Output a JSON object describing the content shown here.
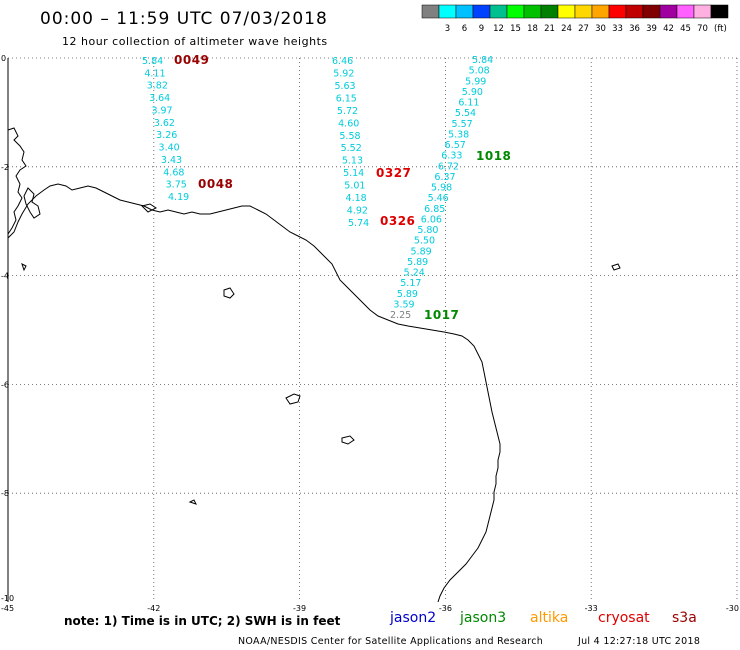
{
  "header": {
    "title": "00:00 – 11:59 UTC 07/03/2018",
    "subtitle": "12 hour collection of altimeter wave heights"
  },
  "legend": {
    "bins": [
      {
        "color": "#808080",
        "label": ""
      },
      {
        "color": "#00ffff",
        "label": "3"
      },
      {
        "color": "#00c0ff",
        "label": "6"
      },
      {
        "color": "#0040ff",
        "label": "9"
      },
      {
        "color": "#00c090",
        "label": "12"
      },
      {
        "color": "#00ff00",
        "label": "15"
      },
      {
        "color": "#00c000",
        "label": "18"
      },
      {
        "color": "#008000",
        "label": "21"
      },
      {
        "color": "#ffff00",
        "label": "24"
      },
      {
        "color": "#ffd700",
        "label": "27"
      },
      {
        "color": "#ffa500",
        "label": "30"
      },
      {
        "color": "#ff0000",
        "label": "33"
      },
      {
        "color": "#c00000",
        "label": "36"
      },
      {
        "color": "#800000",
        "label": "39"
      },
      {
        "color": "#a000a0",
        "label": "42"
      },
      {
        "color": "#ff60ff",
        "label": "45"
      },
      {
        "color": "#ffb0e0",
        "label": "70"
      },
      {
        "color": "#000000",
        "label": ""
      }
    ],
    "unit": "(ft)"
  },
  "axes": {
    "lon_ticks": [
      "-45",
      "-42",
      "-39",
      "-36",
      "-33",
      "-30"
    ],
    "lat_ticks": [
      "0",
      "-2",
      "-4",
      "-6",
      "-8",
      "-10"
    ],
    "lon_range": [
      -45,
      -30
    ],
    "lat_range": [
      0,
      -10
    ]
  },
  "colors": {
    "obs": "#00ccdd",
    "obs_gray": "#808080",
    "pass_dark_red": "#990000",
    "pass_red": "#dd0000",
    "pass_green": "#008800",
    "coast": "#000000",
    "grid": "#555555"
  },
  "passes": [
    {
      "label": "0049",
      "color": "#990000"
    },
    {
      "label": "0048",
      "color": "#990000"
    },
    {
      "label": "0327",
      "color": "#dd0000"
    },
    {
      "label": "0326",
      "color": "#dd0000"
    },
    {
      "label": "1018",
      "color": "#008800"
    },
    {
      "label": "1017",
      "color": "#008800"
    }
  ],
  "tracks": [
    {
      "values": [
        "5.84",
        "4.11",
        "3.82",
        "3.64",
        "3.97",
        "3.62",
        "3.26",
        "3.40",
        "3.43",
        "4.68",
        "3.75",
        "4.19"
      ]
    },
    {
      "values": [
        "6.46",
        "5.92",
        "5.63",
        "6.15",
        "5.72",
        "4.60",
        "5.58",
        "5.52",
        "5.13",
        "5.14",
        "5.01",
        "4.18",
        "4.92",
        "5.74"
      ]
    },
    {
      "values": [
        "5.84",
        "5.08",
        "5.99",
        "5.90",
        "6.11",
        "5.54",
        "5.57",
        "5.38",
        "6.57",
        "6.33",
        "6.72",
        "6.37",
        "5.98",
        "5.46",
        "6.85",
        "6.06",
        "5.80",
        "5.50",
        "5.89",
        "5.89",
        "5.24",
        "5.17",
        "5.89",
        "3.59",
        "2.25"
      ]
    }
  ],
  "footer": {
    "note": "note: 1) Time is in UTC; 2) SWH is in feet",
    "missions": [
      {
        "name": "jason2",
        "color": "#0000cc"
      },
      {
        "name": "jason3",
        "color": "#008800"
      },
      {
        "name": "altika",
        "color": "#ff9900"
      },
      {
        "name": "cryosat",
        "color": "#dd0000"
      },
      {
        "name": "s3a",
        "color": "#990000"
      }
    ],
    "credit": "NOAA/NESDIS Center for Satellite Applications and Research",
    "timestamp": "Jul  4 12:27:18 UTC 2018"
  }
}
